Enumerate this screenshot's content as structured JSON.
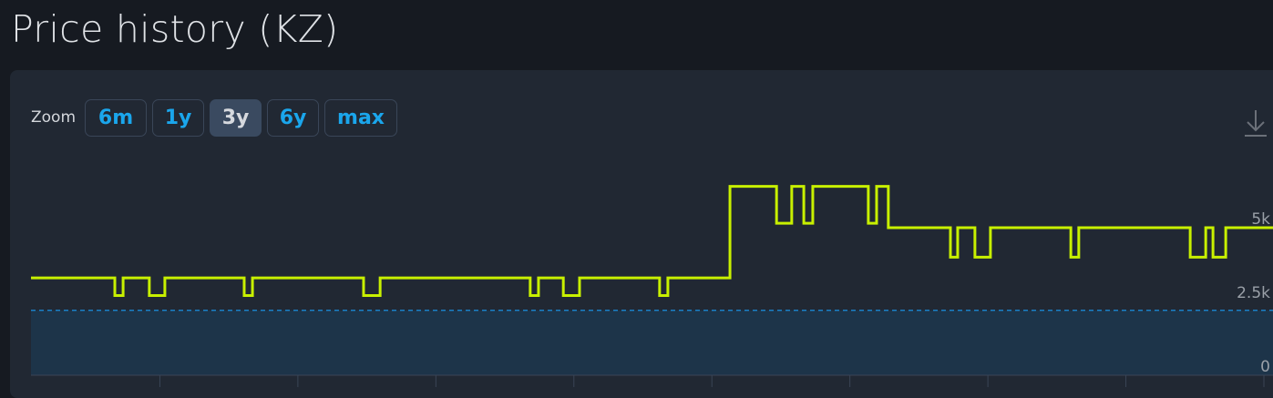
{
  "page_title": "Price history (KZ)",
  "zoom": {
    "label": "Zoom",
    "options": [
      "6m",
      "1y",
      "3y",
      "6y",
      "max"
    ],
    "selected": "3y"
  },
  "download_icon": "download-icon",
  "colors": {
    "line": "#c8f000",
    "reference": "#1a8fe0",
    "area": "#1d3449",
    "accent": "#1aa6ec"
  },
  "chart_data": {
    "type": "line",
    "step": true,
    "grid": false,
    "x_unit": "months within 3y window",
    "xlim": [
      0,
      36
    ],
    "ylim": [
      0,
      7000
    ],
    "y_ticks": [
      {
        "value": 0,
        "label": "0"
      },
      {
        "value": 2500,
        "label": "2.5k"
      },
      {
        "value": 5000,
        "label": "5k"
      }
    ],
    "reference_line": 2200,
    "series": [
      {
        "points": [
          [
            0,
            3300
          ],
          [
            2.43,
            2700
          ],
          [
            2.67,
            3300
          ],
          [
            3.43,
            2700
          ],
          [
            3.88,
            3300
          ],
          [
            6.18,
            2700
          ],
          [
            6.42,
            3300
          ],
          [
            9.64,
            2700
          ],
          [
            10.12,
            3300
          ],
          [
            14.47,
            2700
          ],
          [
            14.71,
            3300
          ],
          [
            15.43,
            2700
          ],
          [
            15.9,
            3300
          ],
          [
            18.22,
            2700
          ],
          [
            18.46,
            3300
          ],
          [
            20.26,
            6400
          ],
          [
            21.61,
            5150
          ],
          [
            22.05,
            6400
          ],
          [
            22.4,
            5150
          ],
          [
            22.66,
            6400
          ],
          [
            24.27,
            5150
          ],
          [
            24.51,
            6400
          ],
          [
            24.85,
            5000
          ],
          [
            26.65,
            4000
          ],
          [
            26.86,
            5000
          ],
          [
            27.36,
            4000
          ],
          [
            27.81,
            5000
          ],
          [
            30.14,
            4000
          ],
          [
            30.37,
            5000
          ],
          [
            33.6,
            4000
          ],
          [
            34.05,
            5000
          ],
          [
            34.26,
            4000
          ],
          [
            34.63,
            5000
          ],
          [
            36,
            5000
          ]
        ]
      }
    ]
  }
}
